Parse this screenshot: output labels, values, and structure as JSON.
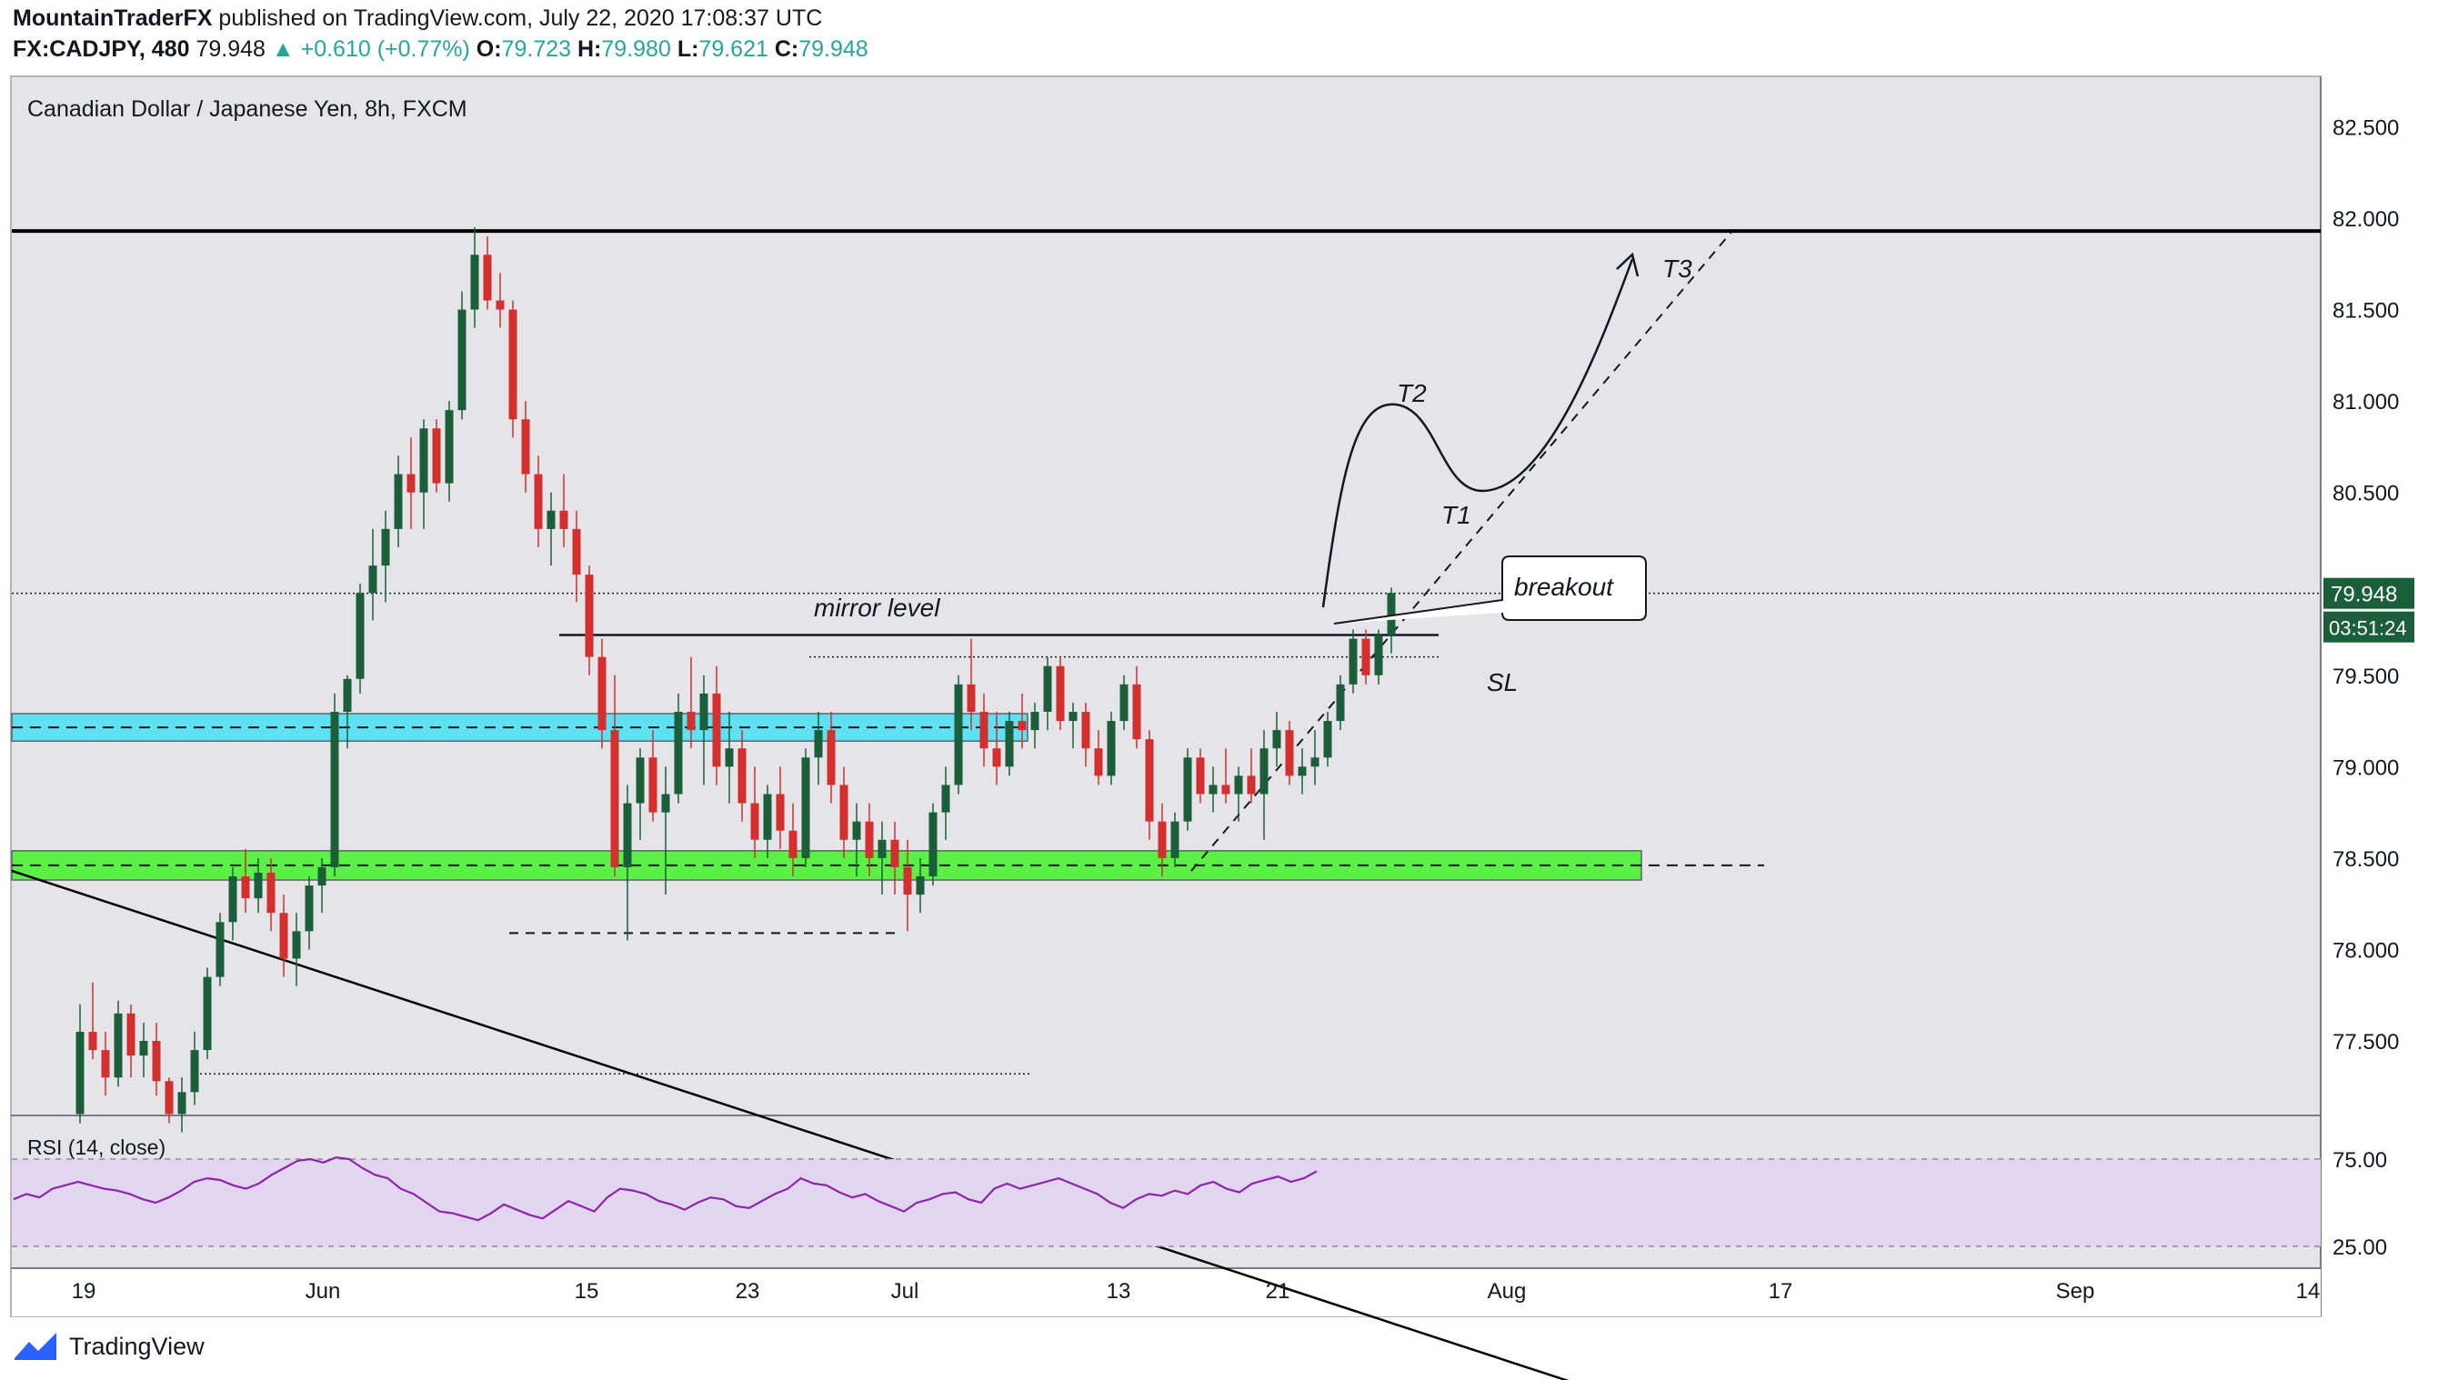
{
  "header": {
    "author": "MountainTraderFX",
    "published": "published on TradingView.com, July 22, 2020 17:08:37 UTC",
    "symbol": "FX:CADJPY, 480",
    "last": "79.948",
    "change": "▲ +0.610 (+0.77%)",
    "open_label": "O:",
    "open": "79.723",
    "high_label": "H:",
    "high": "79.980",
    "low_label": "L:",
    "low": "79.621",
    "close_label": "C:",
    "close": "79.948"
  },
  "chart_data": {
    "type": "candlestick",
    "title": "Canadian Dollar / Japanese Yen, 8h, FXCM",
    "price_ticks": [
      "82.500",
      "82.000",
      "81.500",
      "81.000",
      "80.500",
      "79.500",
      "79.000",
      "78.500",
      "78.000",
      "77.500"
    ],
    "price_tick_values": [
      82.5,
      82.0,
      81.5,
      81.0,
      80.5,
      79.5,
      79.0,
      78.5,
      78.0,
      77.5
    ],
    "price_range": [
      77.0,
      82.8
    ],
    "date_ticks": [
      "19",
      "Jun",
      "15",
      "23",
      "Jul",
      "13",
      "21",
      "Aug",
      "17",
      "Sep",
      "14"
    ],
    "current_price_label": "79.948",
    "countdown_label": "03:51:24",
    "current_price": 79.948,
    "candles": [
      [
        77.1,
        77.7,
        77.05,
        77.55
      ],
      [
        77.55,
        77.82,
        77.4,
        77.45
      ],
      [
        77.45,
        77.55,
        77.2,
        77.3
      ],
      [
        77.3,
        77.72,
        77.25,
        77.65
      ],
      [
        77.65,
        77.7,
        77.3,
        77.42
      ],
      [
        77.42,
        77.6,
        77.3,
        77.5
      ],
      [
        77.5,
        77.6,
        77.2,
        77.28
      ],
      [
        77.28,
        77.3,
        77.05,
        77.1
      ],
      [
        77.1,
        77.3,
        77.0,
        77.22
      ],
      [
        77.22,
        77.55,
        77.15,
        77.45
      ],
      [
        77.45,
        77.9,
        77.4,
        77.85
      ],
      [
        77.85,
        78.2,
        77.8,
        78.15
      ],
      [
        78.15,
        78.45,
        78.05,
        78.4
      ],
      [
        78.4,
        78.55,
        78.2,
        78.28
      ],
      [
        78.28,
        78.5,
        78.2,
        78.42
      ],
      [
        78.42,
        78.5,
        78.1,
        78.2
      ],
      [
        78.2,
        78.3,
        77.85,
        77.95
      ],
      [
        77.95,
        78.2,
        77.8,
        78.1
      ],
      [
        78.1,
        78.4,
        78.0,
        78.35
      ],
      [
        78.35,
        78.5,
        78.2,
        78.45
      ],
      [
        78.45,
        79.4,
        78.4,
        79.3
      ],
      [
        79.3,
        79.5,
        79.1,
        79.48
      ],
      [
        79.48,
        80.0,
        79.4,
        79.95
      ],
      [
        79.95,
        80.3,
        79.8,
        80.1
      ],
      [
        80.1,
        80.4,
        79.9,
        80.3
      ],
      [
        80.3,
        80.7,
        80.2,
        80.6
      ],
      [
        80.6,
        80.8,
        80.3,
        80.5
      ],
      [
        80.5,
        80.9,
        80.3,
        80.85
      ],
      [
        80.85,
        80.9,
        80.5,
        80.55
      ],
      [
        80.55,
        81.0,
        80.45,
        80.95
      ],
      [
        80.95,
        81.6,
        80.9,
        81.5
      ],
      [
        81.5,
        81.95,
        81.4,
        81.8
      ],
      [
        81.8,
        81.9,
        81.5,
        81.55
      ],
      [
        81.55,
        81.7,
        81.4,
        81.5
      ],
      [
        81.5,
        81.55,
        80.8,
        80.9
      ],
      [
        80.9,
        81.0,
        80.5,
        80.6
      ],
      [
        80.6,
        80.7,
        80.2,
        80.3
      ],
      [
        80.3,
        80.5,
        80.1,
        80.4
      ],
      [
        80.4,
        80.6,
        80.2,
        80.3
      ],
      [
        80.3,
        80.4,
        79.9,
        80.05
      ],
      [
        80.05,
        80.1,
        79.5,
        79.6
      ],
      [
        79.6,
        79.7,
        79.1,
        79.2
      ],
      [
        79.2,
        79.5,
        78.4,
        78.45
      ],
      [
        78.45,
        78.9,
        78.05,
        78.8
      ],
      [
        78.8,
        79.1,
        78.6,
        79.05
      ],
      [
        79.05,
        79.2,
        78.7,
        78.75
      ],
      [
        78.75,
        79.0,
        78.3,
        78.85
      ],
      [
        78.85,
        79.4,
        78.8,
        79.3
      ],
      [
        79.3,
        79.6,
        79.1,
        79.2
      ],
      [
        79.2,
        79.5,
        78.9,
        79.4
      ],
      [
        79.4,
        79.55,
        78.9,
        79.0
      ],
      [
        79.0,
        79.3,
        78.8,
        79.1
      ],
      [
        79.1,
        79.2,
        78.7,
        78.8
      ],
      [
        78.8,
        79.0,
        78.5,
        78.6
      ],
      [
        78.6,
        78.9,
        78.5,
        78.85
      ],
      [
        78.85,
        79.0,
        78.55,
        78.65
      ],
      [
        78.65,
        78.8,
        78.4,
        78.5
      ],
      [
        78.5,
        79.1,
        78.45,
        79.05
      ],
      [
        79.05,
        79.3,
        78.9,
        79.2
      ],
      [
        79.2,
        79.3,
        78.8,
        78.9
      ],
      [
        78.9,
        79.0,
        78.5,
        78.6
      ],
      [
        78.6,
        78.8,
        78.4,
        78.7
      ],
      [
        78.7,
        78.8,
        78.4,
        78.5
      ],
      [
        78.5,
        78.7,
        78.3,
        78.6
      ],
      [
        78.6,
        78.7,
        78.3,
        78.45
      ],
      [
        78.45,
        78.6,
        78.1,
        78.3
      ],
      [
        78.3,
        78.5,
        78.2,
        78.4
      ],
      [
        78.4,
        78.8,
        78.35,
        78.75
      ],
      [
        78.75,
        79.0,
        78.6,
        78.9
      ],
      [
        78.9,
        79.5,
        78.85,
        79.45
      ],
      [
        79.45,
        79.7,
        79.2,
        79.3
      ],
      [
        79.3,
        79.4,
        79.0,
        79.1
      ],
      [
        79.1,
        79.3,
        78.9,
        79.0
      ],
      [
        79.0,
        79.3,
        78.95,
        79.25
      ],
      [
        79.25,
        79.4,
        79.1,
        79.2
      ],
      [
        79.2,
        79.35,
        79.1,
        79.3
      ],
      [
        79.3,
        79.6,
        79.2,
        79.55
      ],
      [
        79.55,
        79.6,
        79.2,
        79.25
      ],
      [
        79.25,
        79.35,
        79.1,
        79.3
      ],
      [
        79.3,
        79.35,
        79.0,
        79.1
      ],
      [
        79.1,
        79.2,
        78.9,
        78.95
      ],
      [
        78.95,
        79.3,
        78.9,
        79.25
      ],
      [
        79.25,
        79.5,
        79.2,
        79.45
      ],
      [
        79.45,
        79.55,
        79.1,
        79.15
      ],
      [
        79.15,
        79.2,
        78.6,
        78.7
      ],
      [
        78.7,
        78.8,
        78.4,
        78.5
      ],
      [
        78.5,
        78.75,
        78.45,
        78.7
      ],
      [
        78.7,
        79.1,
        78.65,
        79.05
      ],
      [
        79.05,
        79.1,
        78.8,
        78.85
      ],
      [
        78.85,
        79.0,
        78.75,
        78.9
      ],
      [
        78.9,
        79.1,
        78.8,
        78.85
      ],
      [
        78.85,
        79.0,
        78.7,
        78.95
      ],
      [
        78.95,
        79.1,
        78.8,
        78.85
      ],
      [
        78.85,
        79.2,
        78.6,
        79.1
      ],
      [
        79.1,
        79.3,
        79.0,
        79.2
      ],
      [
        79.2,
        79.25,
        78.9,
        78.95
      ],
      [
        78.95,
        79.1,
        78.85,
        79.0
      ],
      [
        79.0,
        79.2,
        78.9,
        79.05
      ],
      [
        79.05,
        79.3,
        79.0,
        79.25
      ],
      [
        79.25,
        79.5,
        79.2,
        79.45
      ],
      [
        79.45,
        79.75,
        79.4,
        79.7
      ],
      [
        79.7,
        79.75,
        79.45,
        79.5
      ],
      [
        79.5,
        79.75,
        79.45,
        79.72
      ],
      [
        79.72,
        79.98,
        79.62,
        79.95
      ]
    ],
    "annotations": [
      "mirror level",
      "breakout",
      "SL",
      "T1",
      "T2",
      "T3"
    ],
    "zones": [
      {
        "label": "blue-zone",
        "from": 79.14,
        "to": 79.29,
        "color": "#5ee2f2"
      },
      {
        "label": "green-zone",
        "from": 78.38,
        "to": 78.54,
        "color": "#5bf046"
      }
    ],
    "resistance_level": 81.93,
    "mirror_level": 79.72,
    "sl_level": 79.6,
    "rsi": {
      "label": "RSI (14, close)",
      "ticks": [
        "75.00",
        "25.00"
      ],
      "tick_values": [
        75,
        25
      ],
      "band": [
        25,
        75
      ],
      "values": [
        52,
        55,
        53,
        58,
        60,
        62,
        60,
        58,
        57,
        55,
        52,
        50,
        53,
        57,
        62,
        64,
        63,
        60,
        58,
        61,
        66,
        70,
        74,
        75,
        73,
        76,
        75,
        70,
        66,
        64,
        58,
        55,
        50,
        45,
        44,
        42,
        40,
        44,
        49,
        46,
        43,
        41,
        46,
        51,
        48,
        45,
        53,
        58,
        57,
        55,
        51,
        49,
        46,
        50,
        53,
        52,
        48,
        47,
        51,
        55,
        58,
        64,
        61,
        60,
        56,
        53,
        55,
        51,
        48,
        45,
        50,
        52,
        55,
        56,
        52,
        50,
        58,
        61,
        58,
        60,
        62,
        64,
        61,
        58,
        55,
        50,
        47,
        52,
        55,
        54,
        57,
        55,
        60,
        62,
        58,
        56,
        61,
        63,
        65,
        62,
        64,
        68
      ]
    }
  },
  "footer": {
    "brand": "TradingView"
  }
}
